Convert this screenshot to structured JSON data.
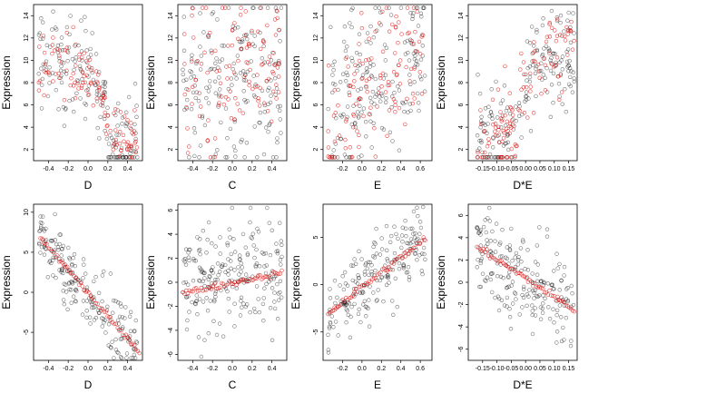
{
  "chart_data": [
    {
      "type": "scatter",
      "xlabel": "D",
      "ylabel": "Expression",
      "xlim": [
        -0.55,
        0.55
      ],
      "ylim": [
        1,
        15
      ],
      "xticks": [
        -0.4,
        -0.2,
        0.0,
        0.2,
        0.4
      ],
      "xtick_labels": [
        "-0.4",
        "-0.2",
        "0.0",
        "0.2",
        "0.4"
      ],
      "yticks": [
        2,
        4,
        6,
        8,
        10,
        12,
        14
      ],
      "ytick_labels": [
        "2",
        "4",
        "6",
        "8",
        "10",
        "12",
        "14"
      ],
      "series": [
        {
          "color": "#000000",
          "x_range": [
            -0.5,
            0.5
          ],
          "y_trend": [
            [
              -0.5,
              10.5
            ],
            [
              -0.2,
              9
            ],
            [
              0.1,
              8.5
            ],
            [
              0.2,
              3.5
            ],
            [
              0.5,
              2.8
            ]
          ],
          "spread": 2.2,
          "n": 180
        },
        {
          "color": "#e00000",
          "x_range": [
            -0.5,
            0.5
          ],
          "y_trend": [
            [
              -0.5,
              10.5
            ],
            [
              -0.2,
              9.2
            ],
            [
              0.1,
              8
            ],
            [
              0.2,
              4.5
            ],
            [
              0.5,
              2.2
            ]
          ],
          "spread": 1.5,
          "n": 120
        }
      ]
    },
    {
      "type": "scatter",
      "xlabel": "C",
      "ylabel": "Expression",
      "xlim": [
        -0.55,
        0.55
      ],
      "ylim": [
        1,
        15
      ],
      "xticks": [
        -0.4,
        -0.2,
        0.0,
        0.2,
        0.4
      ],
      "xtick_labels": [
        "-0.4",
        "-0.2",
        "0.0",
        "0.2",
        "0.4"
      ],
      "yticks": [
        2,
        4,
        6,
        8,
        10,
        12,
        14
      ],
      "ytick_labels": [
        "2",
        "4",
        "6",
        "8",
        "10",
        "12",
        "14"
      ],
      "series": [
        {
          "color": "#000000",
          "x_range": [
            -0.5,
            0.5
          ],
          "y_trend": [
            [
              -0.5,
              7
            ],
            [
              0.5,
              9
            ]
          ],
          "spread": 4,
          "n": 180
        },
        {
          "color": "#e00000",
          "x_range": [
            -0.5,
            0.5
          ],
          "y_trend": [
            [
              -0.5,
              7
            ],
            [
              0.5,
              10
            ]
          ],
          "spread": 3.5,
          "n": 120
        }
      ]
    },
    {
      "type": "scatter",
      "xlabel": "E",
      "ylabel": "Expression",
      "xlim": [
        -0.4,
        0.72
      ],
      "ylim": [
        1,
        15
      ],
      "xticks": [
        -0.2,
        0.0,
        0.2,
        0.4,
        0.6
      ],
      "xtick_labels": [
        "-0.2",
        "0.0",
        "0.2",
        "0.4",
        "0.6"
      ],
      "yticks": [
        2,
        4,
        6,
        8,
        10,
        12,
        14
      ],
      "ytick_labels": [
        "2",
        "4",
        "6",
        "8",
        "10",
        "12",
        "14"
      ],
      "series": [
        {
          "color": "#000000",
          "x_range": [
            -0.35,
            0.65
          ],
          "y_trend": [
            [
              -0.35,
              4
            ],
            [
              0.0,
              8
            ],
            [
              0.3,
              9.5
            ],
            [
              0.65,
              12
            ]
          ],
          "spread": 3.5,
          "n": 180
        },
        {
          "color": "#e00000",
          "x_range": [
            -0.35,
            0.65
          ],
          "y_trend": [
            [
              -0.35,
              4
            ],
            [
              0.0,
              7.5
            ],
            [
              0.3,
              9.5
            ],
            [
              0.65,
              11.5
            ]
          ],
          "spread": 3,
          "n": 120
        }
      ]
    },
    {
      "type": "scatter",
      "xlabel": "D*E",
      "ylabel": "Expression",
      "xlim": [
        -0.2,
        0.18
      ],
      "ylim": [
        1,
        15
      ],
      "xticks": [
        -0.15,
        -0.1,
        -0.05,
        0.0,
        0.05,
        0.1,
        0.15
      ],
      "xtick_labels": [
        "-0.15",
        "-0.10",
        "-0.05",
        "0.00",
        "0.05",
        "0.10",
        "0.15"
      ],
      "yticks": [
        2,
        4,
        6,
        8,
        10,
        12,
        14
      ],
      "ytick_labels": [
        "2",
        "4",
        "6",
        "8",
        "10",
        "12",
        "14"
      ],
      "series": [
        {
          "color": "#000000",
          "x_range": [
            -0.17,
            0.17
          ],
          "y_trend": [
            [
              -0.17,
              3
            ],
            [
              -0.03,
              3.5
            ],
            [
              0.0,
              8
            ],
            [
              0.05,
              10
            ],
            [
              0.17,
              10.5
            ]
          ],
          "spread": 2.5,
          "n": 180
        },
        {
          "color": "#e00000",
          "x_range": [
            -0.17,
            0.17
          ],
          "y_trend": [
            [
              -0.17,
              2
            ],
            [
              -0.05,
              4
            ],
            [
              0.0,
              7.5
            ],
            [
              0.05,
              10.5
            ],
            [
              0.17,
              11
            ]
          ],
          "spread": 2,
          "n": 120
        }
      ]
    },
    {
      "type": "scatter",
      "xlabel": "D",
      "ylabel": "Expression",
      "xlim": [
        -0.55,
        0.55
      ],
      "ylim": [
        -8.5,
        11
      ],
      "xticks": [
        -0.4,
        -0.2,
        0.0,
        0.2,
        0.4
      ],
      "xtick_labels": [
        "-0.4",
        "-0.2",
        "0.0",
        "0.2",
        "0.4"
      ],
      "yticks": [
        -5,
        0,
        5,
        10
      ],
      "ytick_labels": [
        "-5",
        "0",
        "5",
        "10"
      ],
      "series": [
        {
          "color": "#000000",
          "x_range": [
            -0.5,
            0.5
          ],
          "y_trend": [
            [
              -0.5,
              7
            ],
            [
              0.5,
              -7
            ]
          ],
          "spread": 2,
          "n": 200
        },
        {
          "color": "#e00000",
          "x_range": [
            -0.48,
            0.52
          ],
          "y_trend": [
            [
              -0.48,
              6.8
            ],
            [
              0.52,
              -7.5
            ]
          ],
          "spread": 0.15,
          "n": 60
        }
      ]
    },
    {
      "type": "scatter",
      "xlabel": "C",
      "ylabel": "Expression",
      "xlim": [
        -0.55,
        0.55
      ],
      "ylim": [
        -6.5,
        6.5
      ],
      "xticks": [
        -0.4,
        -0.2,
        0.0,
        0.2,
        0.4
      ],
      "xtick_labels": [
        "-0.4",
        "-0.2",
        "0.0",
        "0.2",
        "0.4"
      ],
      "yticks": [
        -6,
        -4,
        -2,
        0,
        2,
        4,
        6
      ],
      "ytick_labels": [
        "-6",
        "-4",
        "-2",
        "0",
        "2",
        "4",
        "6"
      ],
      "series": [
        {
          "color": "#000000",
          "x_range": [
            -0.5,
            0.5
          ],
          "y_trend": [
            [
              -0.5,
              -0.5
            ],
            [
              0.5,
              1
            ]
          ],
          "spread": 2.3,
          "n": 220
        },
        {
          "color": "#e00000",
          "x_range": [
            -0.5,
            0.5
          ],
          "y_trend": [
            [
              -0.5,
              -0.9
            ],
            [
              0.5,
              0.8
            ]
          ],
          "spread": 0.12,
          "n": 60
        }
      ]
    },
    {
      "type": "scatter",
      "xlabel": "E",
      "ylabel": "Expression",
      "xlim": [
        -0.4,
        0.72
      ],
      "ylim": [
        -8,
        8.5
      ],
      "xticks": [
        -0.2,
        0.0,
        0.2,
        0.4,
        0.6
      ],
      "xtick_labels": [
        "-0.2",
        "0.0",
        "0.2",
        "0.4",
        "0.6"
      ],
      "yticks": [
        -5,
        0,
        5
      ],
      "ytick_labels": [
        "-5",
        "0",
        "5"
      ],
      "series": [
        {
          "color": "#000000",
          "x_range": [
            -0.35,
            0.65
          ],
          "y_trend": [
            [
              -0.35,
              -3
            ],
            [
              0.65,
              5
            ]
          ],
          "spread": 2.2,
          "n": 200
        },
        {
          "color": "#e00000",
          "x_range": [
            -0.35,
            0.65
          ],
          "y_trend": [
            [
              -0.35,
              -3
            ],
            [
              0.65,
              4.8
            ]
          ],
          "spread": 0.2,
          "n": 60
        }
      ]
    },
    {
      "type": "scatter",
      "xlabel": "D*E",
      "ylabel": "Expression",
      "xlim": [
        -0.2,
        0.18
      ],
      "ylim": [
        -7,
        7
      ],
      "xticks": [
        -0.15,
        -0.1,
        -0.05,
        0.0,
        0.05,
        0.1,
        0.15
      ],
      "xtick_labels": [
        "-0.15",
        "-0.10",
        "-0.05",
        "0.00",
        "0.05",
        "0.10",
        "0.15"
      ],
      "yticks": [
        -6,
        -4,
        -2,
        0,
        2,
        4,
        6
      ],
      "ytick_labels": [
        "-6",
        "-4",
        "-2",
        "0",
        "2",
        "4",
        "6"
      ],
      "series": [
        {
          "color": "#000000",
          "x_range": [
            -0.17,
            0.17
          ],
          "y_trend": [
            [
              -0.17,
              3
            ],
            [
              0.17,
              -2.5
            ]
          ],
          "spread": 2,
          "n": 200
        },
        {
          "color": "#e00000",
          "x_range": [
            -0.17,
            0.17
          ],
          "y_trend": [
            [
              -0.17,
              3.2
            ],
            [
              0.17,
              -2.5
            ]
          ],
          "spread": 0.15,
          "n": 60
        }
      ]
    }
  ]
}
